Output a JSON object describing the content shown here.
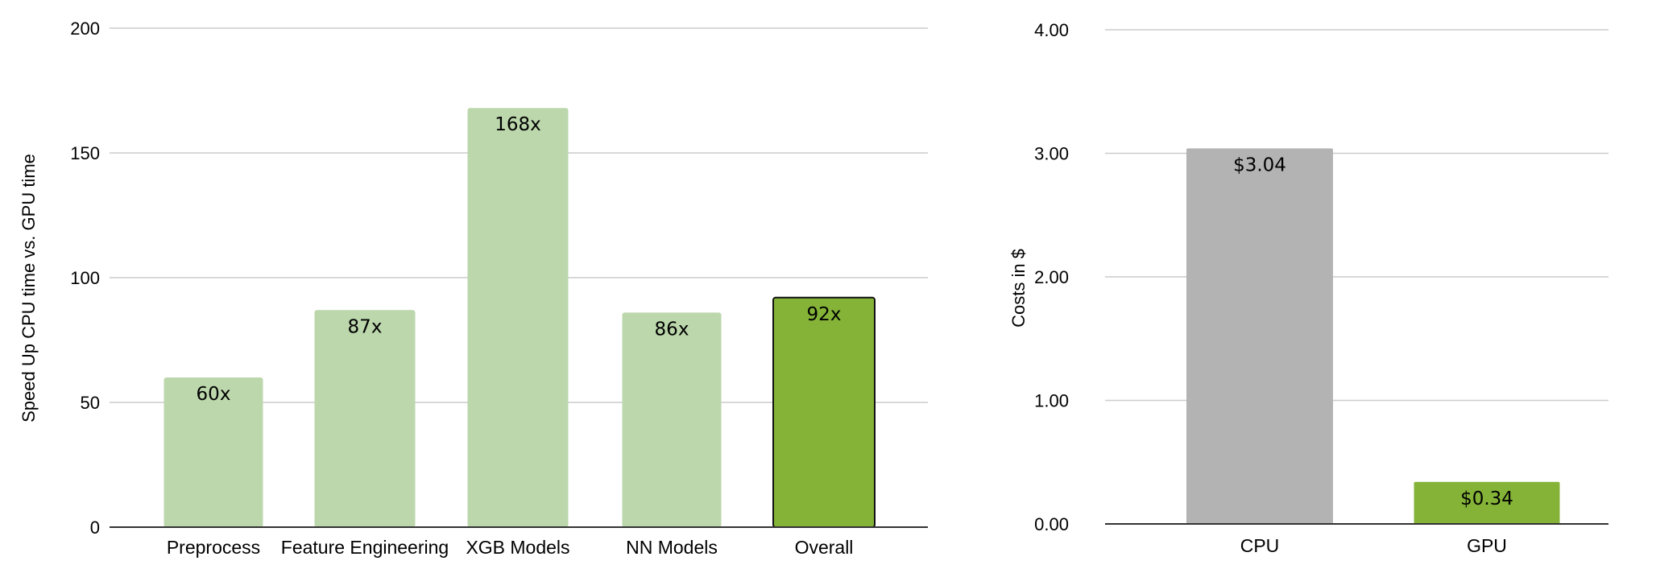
{
  "chart_data": [
    {
      "type": "bar",
      "title": "",
      "xlabel": "",
      "ylabel": "Speed Up CPU time vs. GPU time",
      "ylim": [
        0,
        200
      ],
      "yticks": [
        "0",
        "50",
        "100",
        "150",
        "200"
      ],
      "categories": [
        "Preprocess",
        "Feature Engineering",
        "XGB Models",
        "NN Models",
        "Overall"
      ],
      "values": [
        60,
        87,
        168,
        86,
        92
      ],
      "data_labels": [
        "60x",
        "87x",
        "168x",
        "86x",
        "92x"
      ],
      "colors": [
        "#bcd7ac",
        "#bcd7ac",
        "#bcd7ac",
        "#bcd7ac",
        "#84b338"
      ],
      "highlighted": "Overall",
      "grid": true,
      "legend": "none"
    },
    {
      "type": "bar",
      "title": "",
      "xlabel": "",
      "ylabel": "Costs in $",
      "ylim": [
        0,
        4
      ],
      "yticks": [
        "0.00",
        "1.00",
        "2.00",
        "3.00",
        "4.00"
      ],
      "categories": [
        "CPU",
        "GPU"
      ],
      "values": [
        3.04,
        0.34
      ],
      "data_labels": [
        "$3.04",
        "$0.34"
      ],
      "colors": [
        "#b3b3b3",
        "#84b338"
      ],
      "grid": true,
      "legend": "none"
    }
  ]
}
